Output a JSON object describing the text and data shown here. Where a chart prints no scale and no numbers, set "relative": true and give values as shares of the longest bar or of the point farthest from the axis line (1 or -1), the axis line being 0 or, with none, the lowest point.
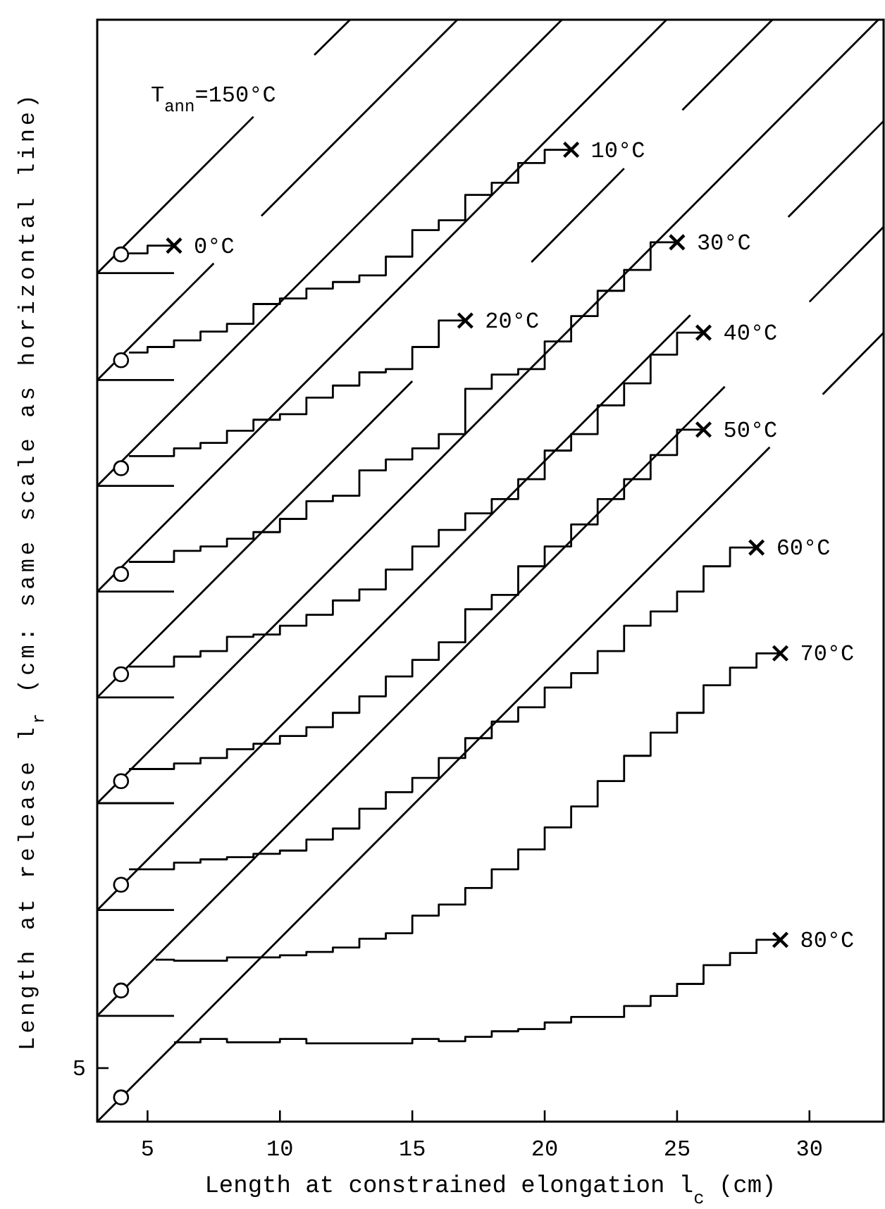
{
  "chart_data": {
    "type": "step",
    "relative": true,
    "xlabel": "Length at constrained elongation l$_{c}$ (cm)",
    "ylabel": "Length at release l$_{r}$ (cm: same scale as horizontal line)",
    "xlim": [
      3.1,
      32.8
    ],
    "xticks": [
      5,
      10,
      15,
      20,
      25,
      30
    ],
    "grid": false,
    "annotations": [
      "T$_{ann}$=150°C",
      "5"
    ],
    "series": [
      {
        "type": "line",
        "color": "#000000",
        "x": [
          3.1,
          28.5,
          29.5,
          30.5,
          32.8
        ],
        "values": [
          0,
          0.612,
          null,
          0.66,
          0.716
        ]
      },
      {
        "type": "line",
        "color": "#000000",
        "x": [
          3.1,
          26.8,
          28.4,
          30.0,
          32.8
        ],
        "values": [
          0.096,
          0.667,
          null,
          0.744,
          0.812
        ]
      },
      {
        "type": "line",
        "color": "#000000",
        "x": [
          3.1,
          25.5,
          27,
          29.2,
          32.8
        ],
        "values": [
          0.192,
          0.732,
          null,
          0.821,
          0.908
        ]
      },
      {
        "type": "line",
        "color": "#000000",
        "x": [
          3.1,
          32.6
        ],
        "values": [
          0.289,
          1.0
        ]
      },
      {
        "type": "line",
        "color": "#000000",
        "x": [
          3.1,
          15.0
        ],
        "values": [
          0.385,
          0.672
        ]
      },
      {
        "type": "line",
        "color": "#000000",
        "x": [
          19.5,
          23.0
        ],
        "values": [
          0.78,
          0.865
        ]
      },
      {
        "type": "line",
        "color": "#000000",
        "x": [
          25.2,
          28.6
        ],
        "values": [
          0.918,
          1.0
        ]
      },
      {
        "type": "line",
        "color": "#000000",
        "x": [
          3.1,
          24.6
        ],
        "values": [
          0.481,
          1.0
        ]
      },
      {
        "type": "line",
        "color": "#000000",
        "x": [
          3.1,
          20.65
        ],
        "values": [
          0.577,
          1.0
        ]
      },
      {
        "type": "line",
        "color": "#000000",
        "x": [
          3.1,
          7.5,
          8.4,
          9.3,
          16.7
        ],
        "values": [
          0.673,
          0.779,
          null,
          0.822,
          1.0
        ]
      },
      {
        "type": "line",
        "color": "#000000",
        "x": [
          3.1,
          9.0,
          10,
          11.3,
          12.65
        ],
        "values": [
          0.77,
          0.912,
          null,
          0.968,
          1.0
        ]
      },
      {
        "type": "line",
        "color": "#000000",
        "x": [
          3.1,
          6.0
        ],
        "values": [
          0.096,
          0.096
        ]
      },
      {
        "type": "line",
        "color": "#000000",
        "x": [
          3.1,
          6.0
        ],
        "values": [
          0.192,
          0.192
        ]
      },
      {
        "type": "line",
        "color": "#000000",
        "x": [
          3.1,
          6.0
        ],
        "values": [
          0.289,
          0.289
        ]
      },
      {
        "type": "line",
        "color": "#000000",
        "x": [
          3.1,
          6.0
        ],
        "values": [
          0.385,
          0.385
        ]
      },
      {
        "type": "line",
        "color": "#000000",
        "x": [
          3.1,
          6.0
        ],
        "values": [
          0.481,
          0.481
        ]
      },
      {
        "type": "line",
        "color": "#000000",
        "x": [
          3.1,
          6.0
        ],
        "values": [
          0.577,
          0.577
        ]
      },
      {
        "type": "line",
        "color": "#000000",
        "x": [
          3.1,
          6.0
        ],
        "values": [
          0.673,
          0.673
        ]
      },
      {
        "type": "line",
        "color": "#000000",
        "x": [
          3.1,
          6.0
        ],
        "values": [
          0.77,
          0.77
        ]
      },
      {
        "name": "0°C",
        "color": "#000000",
        "x": [
          4.3,
          5,
          6
        ],
        "values": [
          0.788,
          0.795,
          0.795
        ]
      },
      {
        "name": "10°C",
        "color": "#000000",
        "x": [
          4.3,
          5,
          6,
          7,
          8,
          9,
          10,
          11,
          12,
          13,
          14,
          15,
          16,
          17,
          18,
          19,
          20,
          21
        ],
        "values": [
          0.698,
          0.703,
          0.709,
          0.717,
          0.724,
          0.742,
          0.747,
          0.756,
          0.762,
          0.768,
          0.785,
          0.809,
          0.818,
          0.841,
          0.852,
          0.87,
          0.882,
          0.882
        ]
      },
      {
        "name": "20°C",
        "color": "#000000",
        "x": [
          4.3,
          6,
          7,
          8,
          9,
          10,
          11,
          12,
          13,
          14,
          15,
          16,
          17
        ],
        "values": [
          0.604,
          0.611,
          0.616,
          0.627,
          0.637,
          0.642,
          0.657,
          0.668,
          0.68,
          0.683,
          0.703,
          0.727,
          0.727
        ]
      },
      {
        "name": "30°C",
        "color": "#000000",
        "x": [
          4.3,
          6,
          7,
          8,
          9,
          10,
          11,
          12,
          13,
          14,
          15,
          16,
          17,
          18,
          19,
          20,
          21,
          22,
          23,
          24,
          25
        ],
        "values": [
          0.508,
          0.518,
          0.522,
          0.529,
          0.535,
          0.547,
          0.563,
          0.568,
          0.591,
          0.601,
          0.611,
          0.624,
          0.665,
          0.678,
          0.683,
          0.708,
          0.731,
          0.754,
          0.773,
          0.798,
          0.798
        ]
      },
      {
        "name": "40°C",
        "color": "#000000",
        "x": [
          4.3,
          6,
          7,
          8,
          9,
          10,
          11,
          12,
          13,
          14,
          15,
          16,
          17,
          18,
          19,
          20,
          21,
          22,
          23,
          24,
          25,
          26
        ],
        "values": [
          0.413,
          0.422,
          0.427,
          0.44,
          0.442,
          0.45,
          0.46,
          0.473,
          0.483,
          0.501,
          0.522,
          0.537,
          0.552,
          0.565,
          0.583,
          0.609,
          0.624,
          0.65,
          0.67,
          0.696,
          0.716,
          0.716
        ]
      },
      {
        "name": "50°C",
        "color": "#000000",
        "x": [
          4.3,
          6,
          7,
          8,
          9,
          10,
          11,
          12,
          13,
          14,
          15,
          16,
          17,
          18,
          19,
          20,
          21,
          22,
          23,
          24,
          25,
          26
        ],
        "values": [
          0.32,
          0.325,
          0.33,
          0.338,
          0.343,
          0.35,
          0.358,
          0.371,
          0.386,
          0.404,
          0.419,
          0.435,
          0.465,
          0.478,
          0.504,
          0.522,
          0.542,
          0.565,
          0.583,
          0.605,
          0.628,
          0.628
        ]
      },
      {
        "name": "60°C",
        "color": "#000000",
        "x": [
          4.3,
          6,
          7,
          8,
          9,
          10,
          11,
          12,
          13,
          14,
          15,
          16,
          17,
          18,
          19,
          20,
          21,
          22,
          23,
          24,
          25,
          26,
          27,
          28
        ],
        "values": [
          0.229,
          0.235,
          0.238,
          0.24,
          0.243,
          0.246,
          0.256,
          0.266,
          0.284,
          0.299,
          0.312,
          0.33,
          0.348,
          0.363,
          0.376,
          0.394,
          0.407,
          0.427,
          0.45,
          0.463,
          0.481,
          0.504,
          0.521,
          0.521
        ]
      },
      {
        "name": "70°C",
        "color": "#000000",
        "x": [
          5.3,
          6,
          8,
          10,
          11,
          12,
          13,
          14,
          15,
          16,
          17,
          18,
          19,
          20,
          21,
          22,
          23,
          24,
          25,
          26,
          27,
          28,
          28.9
        ],
        "values": [
          0.147,
          0.146,
          0.149,
          0.151,
          0.154,
          0.158,
          0.166,
          0.171,
          0.187,
          0.197,
          0.212,
          0.229,
          0.247,
          0.267,
          0.286,
          0.309,
          0.332,
          0.353,
          0.371,
          0.396,
          0.412,
          0.425,
          0.425
        ]
      },
      {
        "name": "80°C",
        "color": "#000000",
        "x": [
          6,
          7,
          8,
          10,
          11,
          13,
          15,
          16,
          17,
          18,
          19,
          20,
          21,
          23,
          24,
          25,
          26,
          27,
          28,
          28.9
        ],
        "values": [
          0.072,
          0.075,
          0.072,
          0.075,
          0.071,
          0.071,
          0.075,
          0.073,
          0.077,
          0.082,
          0.084,
          0.09,
          0.095,
          0.105,
          0.114,
          0.125,
          0.142,
          0.153,
          0.165,
          0.165
        ]
      },
      {
        "type": "scatter",
        "marker": "circle",
        "color": "#000000",
        "x": [
          4,
          4,
          4,
          4,
          4,
          4,
          4,
          4,
          4
        ],
        "values": [
          0.787,
          0.691,
          0.593,
          0.497,
          0.406,
          0.309,
          0.215,
          0.119,
          0.022
        ]
      },
      {
        "type": "scatter",
        "marker": "cross",
        "color": "#000000",
        "x": [
          6,
          21,
          17,
          25,
          26,
          26,
          28,
          28.9,
          28.9
        ],
        "values": [
          0.795,
          0.882,
          0.727,
          0.798,
          0.716,
          0.628,
          0.521,
          0.425,
          0.165
        ]
      }
    ]
  }
}
